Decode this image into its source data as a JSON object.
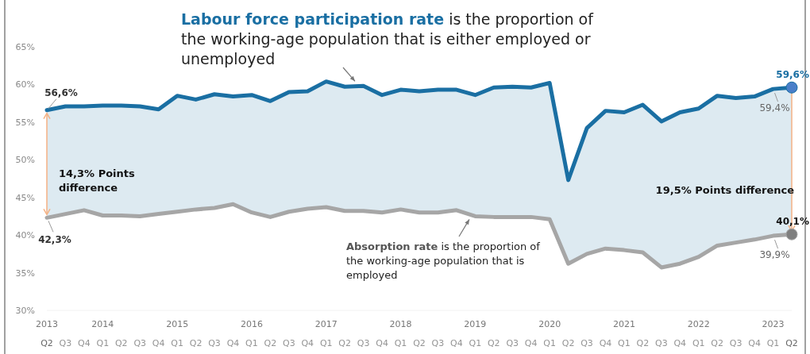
{
  "chart_data": {
    "type": "line",
    "categories": [
      "2013\nQ2",
      "Q3",
      "Q4",
      "2014\nQ1",
      "Q2",
      "Q3",
      "Q4",
      "2015\nQ1",
      "Q2",
      "Q3",
      "Q4",
      "2016\nQ1",
      "Q2",
      "Q3",
      "Q4",
      "2017\nQ1",
      "Q2",
      "Q3",
      "Q4",
      "2018\nQ1",
      "Q2",
      "Q3",
      "Q4",
      "2019\nQ1",
      "Q2",
      "Q3",
      "Q4",
      "2020\nQ1",
      "Q2",
      "Q3",
      "Q4",
      "2021\nQ1",
      "Q2",
      "Q3",
      "Q4",
      "2022\nQ1",
      "Q2",
      "Q3",
      "Q4",
      "2023\nQ1",
      "Q2"
    ],
    "series": [
      {
        "name": "Labour force participation rate",
        "color": "#1a6fa3",
        "values": [
          56.6,
          57.1,
          57.1,
          57.2,
          57.2,
          57.1,
          56.7,
          58.5,
          58.0,
          58.7,
          58.4,
          58.6,
          57.8,
          59.0,
          59.1,
          60.4,
          59.7,
          59.8,
          58.6,
          59.3,
          59.1,
          59.3,
          59.3,
          58.6,
          59.6,
          59.7,
          59.6,
          60.2,
          47.3,
          54.2,
          56.5,
          56.3,
          57.3,
          55.1,
          56.3,
          56.8,
          58.5,
          58.2,
          58.4,
          59.4,
          59.6
        ],
        "lower": [
          42.3,
          42.8,
          43.3,
          42.6,
          42.6,
          42.5,
          42.8,
          43.1,
          43.4,
          43.6,
          44.1,
          43.0,
          42.4,
          43.1,
          43.5,
          43.7,
          43.2,
          43.2,
          43.0,
          43.4,
          43.0,
          43.0,
          43.3,
          42.5,
          42.4,
          42.4,
          42.4,
          42.1,
          36.2,
          37.5,
          38.2,
          38.0,
          37.7,
          35.7,
          36.2,
          37.1,
          38.6,
          39.0,
          39.4,
          39.9,
          40.1
        ],
        "upper": [
          56.6,
          57.1,
          57.1,
          57.2,
          57.2,
          57.1,
          56.7,
          58.5,
          58.0,
          58.7,
          58.4,
          58.6,
          57.8,
          59.0,
          59.1,
          60.4,
          59.7,
          59.8,
          58.6,
          59.3,
          59.1,
          59.3,
          59.3,
          58.6,
          59.6,
          59.7,
          59.6,
          60.2,
          47.3,
          54.2,
          56.5,
          56.3,
          57.3,
          55.1,
          56.3,
          56.8,
          58.5,
          58.2,
          58.4,
          59.4,
          59.6
        ],
        "value_labels": [
          "56,6%",
          null,
          null,
          null,
          null,
          null,
          null,
          null,
          null,
          null,
          null,
          null,
          null,
          null,
          null,
          null,
          null,
          null,
          null,
          null,
          null,
          null,
          null,
          null,
          null,
          null,
          null,
          null,
          null,
          null,
          null,
          null,
          null,
          null,
          null,
          null,
          null,
          null,
          null,
          "59,4%",
          "59,6%"
        ]
      },
      {
        "name": "Absorption rate",
        "color": "#a6a6a6",
        "values": [
          42.3,
          42.8,
          43.3,
          42.6,
          42.6,
          42.5,
          42.8,
          43.1,
          43.4,
          43.6,
          44.1,
          43.0,
          42.4,
          43.1,
          43.5,
          43.7,
          43.2,
          43.2,
          43.0,
          43.4,
          43.0,
          43.0,
          43.3,
          42.5,
          42.4,
          42.4,
          42.4,
          42.1,
          36.2,
          37.5,
          38.2,
          38.0,
          37.7,
          35.7,
          36.2,
          37.1,
          38.6,
          39.0,
          39.4,
          39.9,
          40.1
        ],
        "value_labels": [
          "42,3%",
          null,
          null,
          null,
          null,
          null,
          null,
          null,
          null,
          null,
          null,
          null,
          null,
          null,
          null,
          null,
          null,
          null,
          null,
          null,
          null,
          null,
          null,
          null,
          null,
          null,
          null,
          null,
          null,
          null,
          null,
          null,
          null,
          null,
          null,
          null,
          null,
          null,
          null,
          "39,9%",
          "40,1%"
        ]
      }
    ],
    "annotations": [
      " is the proportion of the working-age population that is either employed or unemployed",
      {
        "text": " is the proportion of the working-age population that is employed",
        "y": 42.5
      },
      "14,3% Points difference",
      "19,5% Points difference"
    ],
    "ylim": [
      30,
      65
    ],
    "yticks": [
      {
        "value": 30,
        "label": "30%"
      },
      {
        "value": 35,
        "label": "35%"
      },
      {
        "value": 40,
        "label": "40%"
      },
      {
        "value": 45,
        "label": "45%"
      },
      {
        "value": 50,
        "label": "50%"
      },
      {
        "value": 55,
        "label": "55%"
      },
      {
        "value": 60,
        "label": "60%"
      },
      {
        "value": 65,
        "label": "65%"
      }
    ],
    "grid": false,
    "legend": false
  }
}
